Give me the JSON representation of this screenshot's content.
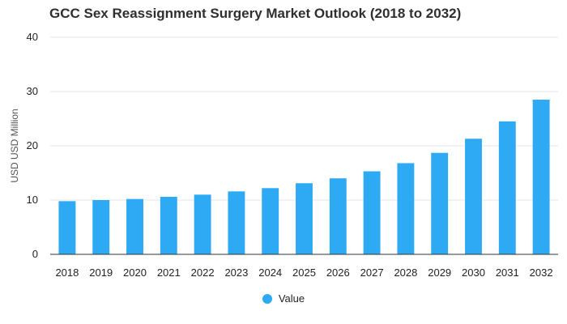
{
  "colors": {
    "bar": "#2eaaf5",
    "grid": "#e6e6e6",
    "axis": "#333333"
  },
  "chart_data": {
    "type": "bar",
    "title": "GCC Sex Reassignment Surgery Market Outlook (2018 to 2032)",
    "xlabel": "",
    "ylabel": "USD USD Million",
    "ylim": [
      0,
      40
    ],
    "yticks": [
      0,
      10,
      20,
      30,
      40
    ],
    "grid": true,
    "legend_position": "bottom-center",
    "categories": [
      "2018",
      "2019",
      "2020",
      "2021",
      "2022",
      "2023",
      "2024",
      "2025",
      "2026",
      "2027",
      "2028",
      "2029",
      "2030",
      "2031",
      "2032"
    ],
    "series": [
      {
        "name": "Value",
        "values": [
          9.8,
          10.0,
          10.2,
          10.6,
          11.0,
          11.6,
          12.2,
          13.1,
          14.0,
          15.3,
          16.8,
          18.7,
          21.3,
          24.5,
          28.5
        ]
      }
    ]
  }
}
